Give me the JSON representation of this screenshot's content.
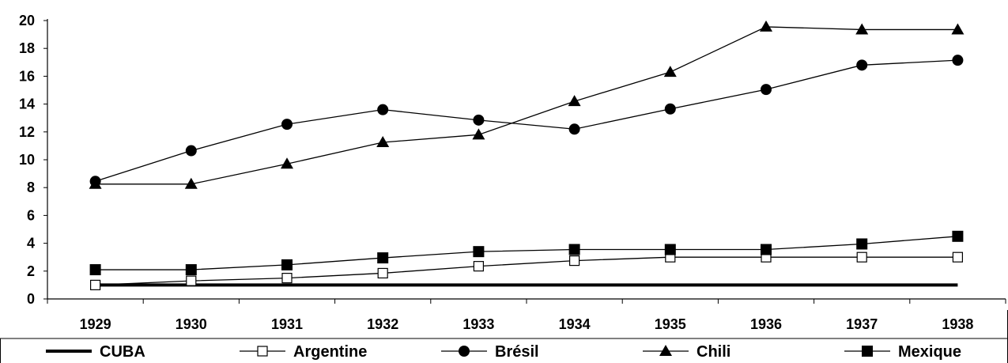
{
  "chart_data": {
    "type": "line",
    "title": "",
    "xlabel": "",
    "ylabel": "",
    "categories": [
      "1929",
      "1930",
      "1931",
      "1932",
      "1933",
      "1934",
      "1935",
      "1936",
      "1937",
      "1938"
    ],
    "ylim": [
      0,
      20
    ],
    "yticks": [
      "0",
      "2",
      "4",
      "6",
      "8",
      "10",
      "12",
      "14",
      "16",
      "18",
      "20"
    ],
    "grid": false,
    "legend_position": "bottom",
    "series": [
      {
        "name": "CUBA",
        "marker": "none",
        "values": [
          1,
          1,
          1,
          1,
          1,
          1,
          1,
          1,
          1,
          1
        ]
      },
      {
        "name": "Argentine",
        "marker": "open-square",
        "values": [
          1.0,
          1.3,
          1.5,
          1.85,
          2.35,
          2.75,
          3.0,
          3.0,
          3.0,
          3.0
        ]
      },
      {
        "name": "Brésil",
        "marker": "filled-circle",
        "values": [
          8.45,
          10.65,
          12.55,
          13.6,
          12.85,
          12.2,
          13.65,
          15.05,
          16.8,
          17.15
        ]
      },
      {
        "name": "Chili",
        "marker": "filled-triangle",
        "values": [
          8.25,
          8.25,
          9.7,
          11.25,
          11.8,
          14.2,
          16.3,
          19.55,
          19.35,
          19.35
        ]
      },
      {
        "name": "Mexique",
        "marker": "filled-square",
        "values": [
          2.1,
          2.1,
          2.45,
          2.95,
          3.4,
          3.55,
          3.55,
          3.55,
          3.95,
          4.5
        ]
      }
    ]
  }
}
